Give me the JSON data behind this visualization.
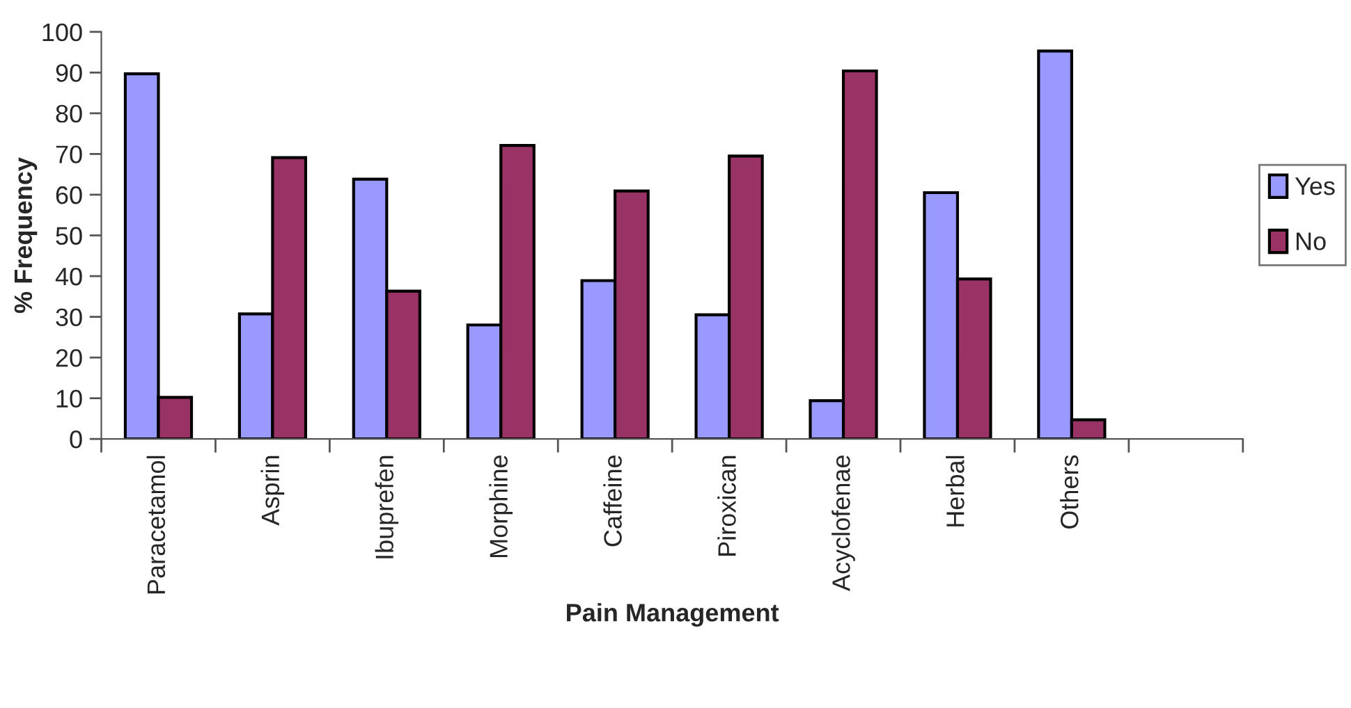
{
  "chart_data": {
    "type": "bar",
    "xlabel": "Pain Management",
    "ylabel": "% Frequency",
    "categories": [
      "Paracetamol",
      "Asprin",
      "Ibuprefen",
      "Morphine",
      "Caffeine",
      "Piroxican",
      "Acyclofenae",
      "Herbal",
      "Others",
      null
    ],
    "series": [
      {
        "name": "Yes",
        "color": "#9999ff",
        "values": [
          89.7,
          30.7,
          63.8,
          28.0,
          38.9,
          30.5,
          9.4,
          60.5,
          95.3,
          null
        ]
      },
      {
        "name": "No",
        "color": "#993366",
        "values": [
          10.2,
          69.1,
          36.3,
          72.1,
          60.9,
          69.5,
          90.4,
          39.3,
          4.7,
          null
        ]
      }
    ],
    "ylim": [
      0,
      100
    ],
    "yticks": [
      0,
      10,
      20,
      30,
      40,
      50,
      60,
      70,
      80,
      90,
      100
    ],
    "grid": false,
    "legend": "right"
  }
}
